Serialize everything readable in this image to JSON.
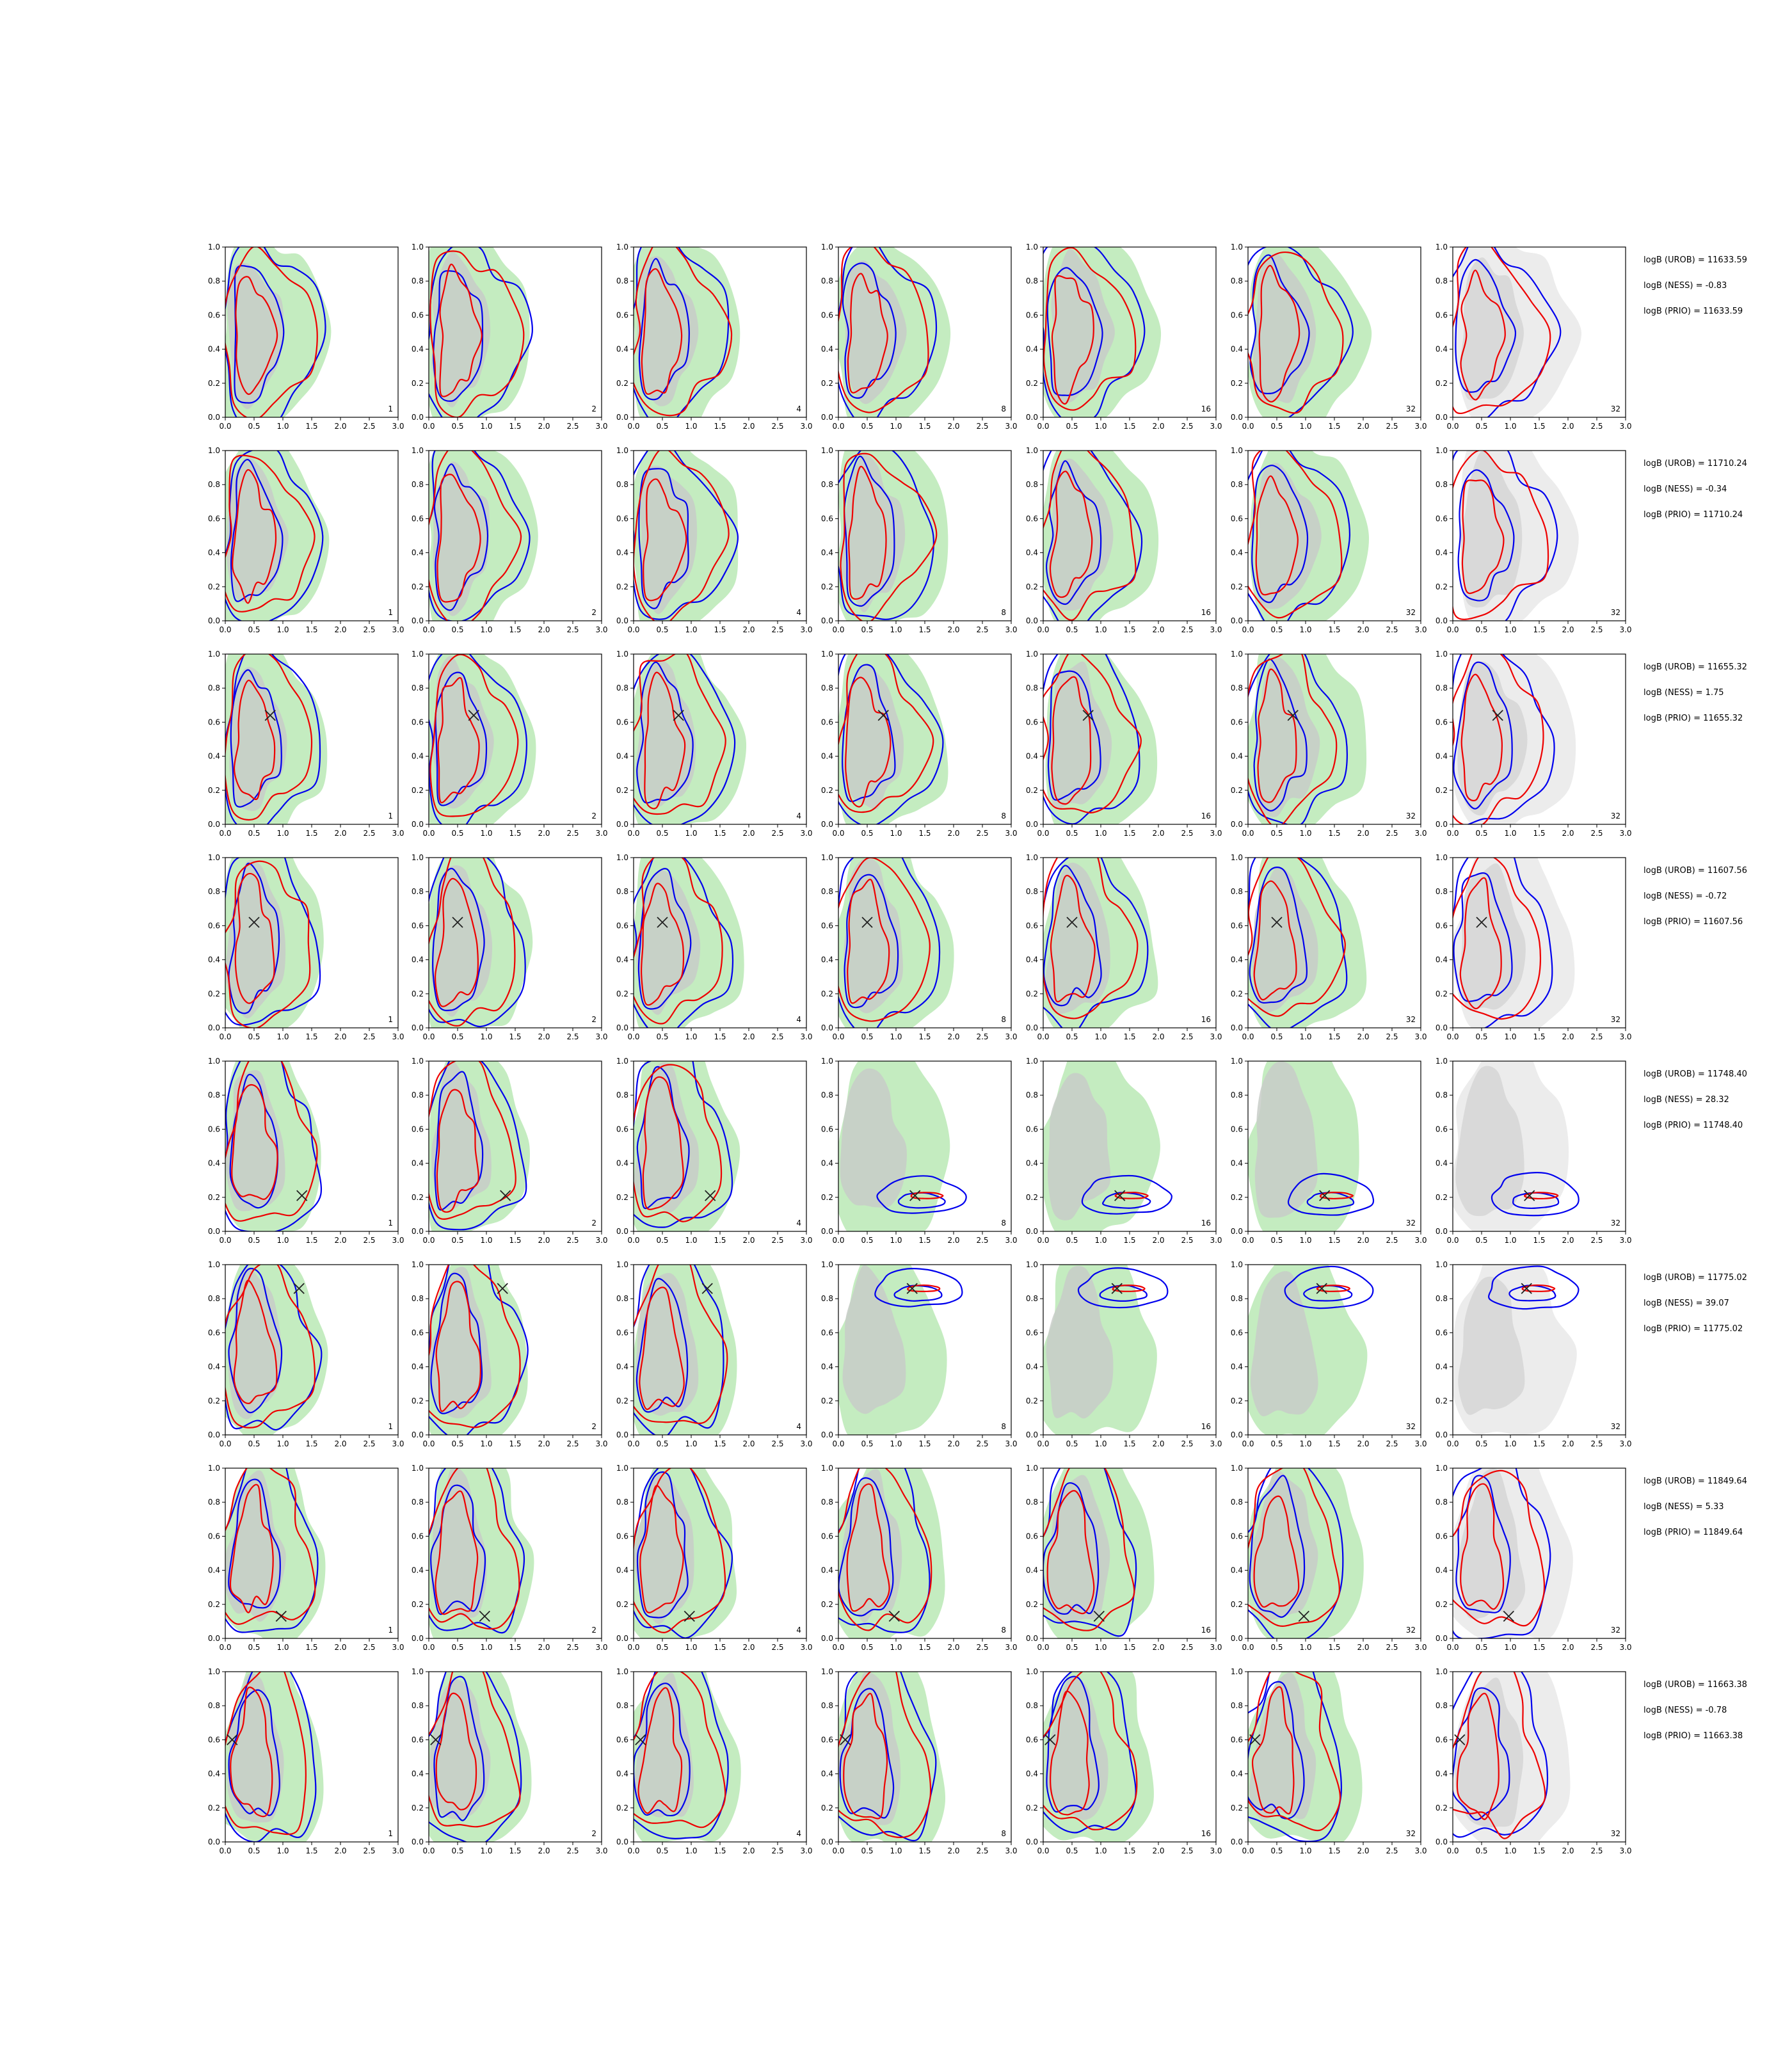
{
  "chart_data": {
    "type": "contour_grid",
    "rows": 8,
    "cols": 7,
    "xlim": [
      0.0,
      3.0
    ],
    "ylim": [
      0.0,
      1.0
    ],
    "xticks": [
      "0.0",
      "0.5",
      "1.0",
      "1.5",
      "2.0",
      "2.5",
      "3.0"
    ],
    "yticks": [
      "0.0",
      "0.2",
      "0.4",
      "0.6",
      "0.8",
      "1.0"
    ],
    "column_labels": [
      "1",
      "2",
      "4",
      "8",
      "16",
      "32",
      "32"
    ],
    "colors": {
      "fill_outer": "#c4ecc0",
      "fill_inner": "#c8ccc8",
      "prior_fill_outer": "#ececec",
      "prior_fill_inner": "#d6d6d6",
      "contour_blue": "#0000ee",
      "contour_red": "#ee0000",
      "marker": "#222222"
    },
    "rows_data": [
      {
        "truth": null,
        "annotations": [
          "logB (UROB) = 11633.59",
          "logB (NESS) = -0.83",
          "logB (PRIO) = 11633.59"
        ]
      },
      {
        "truth": null,
        "annotations": [
          "logB (UROB) = 11710.24",
          "logB (NESS) = -0.34",
          "logB (PRIO) = 11710.24"
        ]
      },
      {
        "truth": [
          0.78,
          0.64
        ],
        "annotations": [
          "logB (UROB) = 11655.32",
          "logB (NESS) = 1.75",
          "logB (PRIO) = 11655.32"
        ]
      },
      {
        "truth": [
          0.5,
          0.62
        ],
        "annotations": [
          "logB (UROB) = 11607.56",
          "logB (NESS) = -0.72",
          "logB (PRIO) = 11607.56"
        ]
      },
      {
        "truth": [
          1.33,
          0.21
        ],
        "annotations": [
          "logB (UROB) = 11748.40",
          "logB (NESS) = 28.32",
          "logB (PRIO) = 11748.40"
        ]
      },
      {
        "truth": [
          1.28,
          0.86
        ],
        "annotations": [
          "logB (UROB) = 11775.02",
          "logB (NESS) = 39.07",
          "logB (PRIO) = 11775.02"
        ]
      },
      {
        "truth": [
          0.97,
          0.13
        ],
        "annotations": [
          "logB (UROB) = 11849.64",
          "logB (NESS) = 5.33",
          "logB (PRIO) = 11849.64"
        ]
      },
      {
        "truth": [
          0.12,
          0.6
        ],
        "annotations": [
          "logB (UROB) = 11663.38",
          "logB (NESS) = -0.78",
          "logB (PRIO) = 11663.38"
        ]
      }
    ]
  }
}
